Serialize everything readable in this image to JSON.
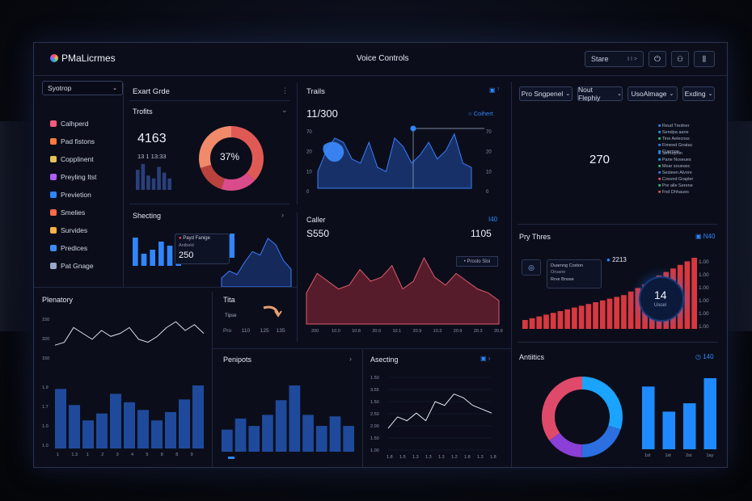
{
  "header": {
    "app_name": "PMaLicrmes",
    "center_title": "Voice Controls",
    "store_label": "Stare",
    "store_suffix": "t I >"
  },
  "sidebar": {
    "dropdown": "Syotrop",
    "items": [
      {
        "label": "Calhperd",
        "icon": "clipboard-icon"
      },
      {
        "label": "Pad fistons",
        "icon": "wrench-icon"
      },
      {
        "label": "Copplinent",
        "icon": "music-note-icon"
      },
      {
        "label": "Preyling Itst",
        "icon": "pin-icon"
      },
      {
        "label": "Previetion",
        "icon": "globe-icon"
      },
      {
        "label": "Smelies",
        "icon": "face-icon"
      },
      {
        "label": "Survides",
        "icon": "bell-icon"
      },
      {
        "label": "Predices",
        "icon": "monitor-icon"
      },
      {
        "label": "Pat Gnage",
        "icon": "chat-icon"
      }
    ]
  },
  "panel_event": {
    "title": "Exart Grde",
    "subtitle": "Trofits",
    "value": "4163",
    "sub_value": "13 1 13:33",
    "donut_label": "37%"
  },
  "panel_trails": {
    "title": "Trails",
    "value": "11/300",
    "legend": "Coihert"
  },
  "panel_selectors": {
    "options": [
      "Pro Sngpenel",
      "Nout Flephiy",
      "UsoAlmage",
      "Exding"
    ]
  },
  "panel_blue": {
    "donut_value": "270",
    "legend_top": [
      "Reud Tredner",
      "Sendpa aane",
      "Tine Aelecnss",
      "Fimeed Gnatac",
      "Cuernoe"
    ],
    "legend_bottom": [
      "Sernepnin",
      "Pane Nvseues",
      "Mear soueasc",
      "Sesteen Alvore",
      "Cosvnd Grapler",
      "Pre alle Serene",
      "Fnd Dhhaues"
    ]
  },
  "panel_shecting": {
    "title": "Shecting",
    "tooltip_title": "Payd Fanige",
    "tooltip_sub": "Antbeld",
    "tooltip_value": "250"
  },
  "panel_caller": {
    "title": "Caller",
    "left_value": "S550",
    "right_value": "1105",
    "tag": "• Proslo Sloi"
  },
  "panel_pry": {
    "title": "Pry Thres",
    "badge": "N40",
    "stat": "2213",
    "note1": "Duarnng Coston",
    "note2": "Oruane",
    "note3": "Rrve Bnose",
    "circle_value": "14",
    "circle_label": "Uscel"
  },
  "panel_plenatory": {
    "title": "Plenatory"
  },
  "panel_tita": {
    "title": "Tita",
    "label": "Tipse"
  },
  "panel_periods": {
    "title": "Penipots"
  },
  "panel_asecting": {
    "title": "Asecting"
  },
  "panel_analytics": {
    "title": "Antiitics",
    "badge": "140"
  },
  "chart_data": [
    {
      "type": "bar",
      "title": "Trofits",
      "values": [
        7,
        9,
        5,
        4,
        8,
        6,
        4
      ]
    },
    {
      "type": "pie",
      "title": "Exart Grde",
      "values": [
        37,
        18,
        15,
        30
      ],
      "colors": [
        "#e05a55",
        "#d94b8a",
        "#b9423e",
        "#f08a6a"
      ]
    },
    {
      "type": "area",
      "title": "Trails",
      "ylabels": [
        "70",
        "20",
        "10",
        "0"
      ],
      "values": [
        20,
        45,
        60,
        55,
        35,
        30,
        55,
        25,
        20,
        60,
        50,
        30,
        40,
        55,
        35,
        45,
        65,
        30,
        25
      ]
    },
    {
      "type": "bar",
      "title": "Shecting",
      "values": [
        7,
        3,
        4,
        6,
        5,
        8
      ]
    },
    {
      "type": "area",
      "title": "Caller",
      "xlabels": [
        "200",
        "10.0",
        "10.8",
        "20.0",
        "10.1",
        "20.9",
        "10.3",
        "20.9",
        "20.3",
        "20.9"
      ],
      "values": [
        40,
        65,
        55,
        45,
        50,
        70,
        55,
        60,
        75,
        45,
        55,
        85,
        60,
        50,
        65,
        55,
        45,
        40,
        30
      ]
    },
    {
      "type": "bar",
      "title": "Pry Thres",
      "ylabels": [
        "1.00",
        "1.00",
        "1.00",
        "1.00",
        "1.00",
        "1.00"
      ],
      "values": [
        10,
        12,
        14,
        16,
        18,
        20,
        22,
        24,
        26,
        28,
        30,
        32,
        34,
        36,
        38,
        42,
        46,
        50,
        55,
        60,
        64,
        68,
        72,
        76,
        80
      ]
    },
    {
      "type": "line",
      "title": "Plenatory",
      "ylabels": [
        "150",
        "320",
        "150"
      ],
      "values": [
        30,
        35,
        60,
        50,
        40,
        55,
        45,
        50,
        60,
        40,
        35,
        45,
        60,
        70,
        55,
        65,
        50
      ]
    },
    {
      "type": "bar",
      "title": "Plenatory",
      "ylabels": [
        "1.9",
        "1.7",
        "1.0",
        "1.0"
      ],
      "xlabels": [
        "1",
        "1.3",
        "1",
        "2",
        "3",
        "4",
        "5",
        "8",
        "8",
        "9"
      ],
      "values": [
        85,
        62,
        40,
        50,
        78,
        66,
        55,
        40,
        52,
        70,
        90
      ]
    },
    {
      "type": "bar",
      "title": "Penipots",
      "values": [
        30,
        45,
        35,
        50,
        70,
        90,
        50,
        35,
        48,
        35
      ]
    },
    {
      "type": "line",
      "title": "Asecting",
      "ylabels": [
        "1.50",
        "3.55",
        "1.50",
        "2.50",
        "2.00",
        "1.50",
        "1.00"
      ],
      "xlabels": [
        "1.8",
        "1.5",
        "1.3",
        "1.3",
        "1.3",
        "1.2",
        "1.8",
        "1.3",
        "1.8"
      ],
      "values": [
        20,
        35,
        30,
        40,
        30,
        55,
        50,
        65,
        60,
        50,
        45,
        40
      ]
    },
    {
      "type": "pie",
      "title": "Antiitics",
      "values": [
        30,
        20,
        15,
        35
      ],
      "colors": [
        "#1aa3ff",
        "#2b6fe0",
        "#8a3fd6",
        "#e04a6a"
      ]
    },
    {
      "type": "bar",
      "title": "Antiitics",
      "xlabels": [
        "1st",
        "1st",
        "2st",
        "1ay"
      ],
      "values": [
        75,
        45,
        55,
        85
      ]
    }
  ]
}
